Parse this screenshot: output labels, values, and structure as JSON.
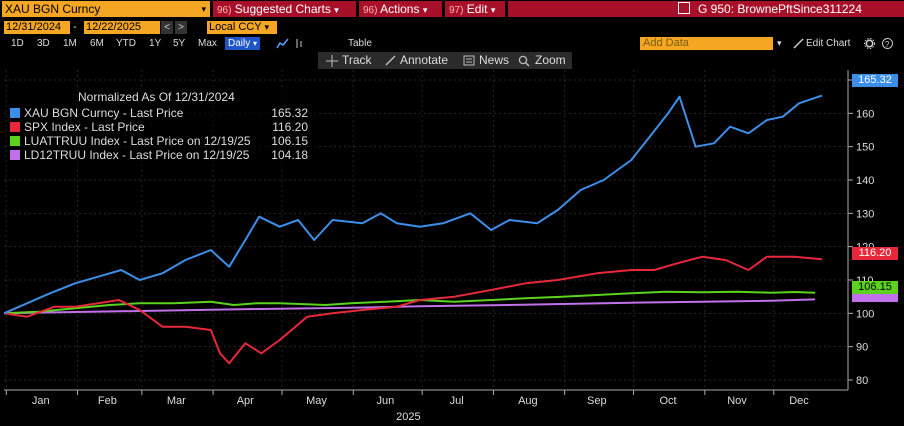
{
  "header": {
    "title": "XAU BGN Curncy",
    "title_caret": "▾",
    "suggested_num": "96)",
    "suggested_label": "Suggested Charts",
    "actions_num": "96)",
    "actions_label": "Actions",
    "edit_num": "97)",
    "edit_label": "Edit",
    "caret": "▾",
    "window_label": "G 950: BrownePftSince311224"
  },
  "controls": {
    "start_date": "12/31/2024",
    "end_date": "12/22/2025",
    "dash": "-",
    "prev": "<",
    "next": ">",
    "currency": "Local CCY",
    "caret": "▾",
    "periods": [
      "1D",
      "3D",
      "1M",
      "6M",
      "YTD",
      "1Y",
      "5Y",
      "Max"
    ],
    "frequency": "Daily",
    "table_label": "Table",
    "add_data_placeholder": "Add Data",
    "edit_chart": "Edit Chart",
    "tools": [
      "Track",
      "Annotate",
      "News",
      "Zoom"
    ]
  },
  "legend": {
    "title": "Normalized As Of 12/31/2024",
    "items": [
      {
        "label": "XAU BGN Curncy - Last Price",
        "value": "165.32",
        "color": "#3c8fe8"
      },
      {
        "label": "SPX Index - Last Price",
        "value": "116.20",
        "color": "#e8283a"
      },
      {
        "label": "LUATTRUU Index - Last Price on 12/19/25",
        "value": "106.15",
        "color": "#5ad21e"
      },
      {
        "label": "LD12TRUU Index - Last Price on 12/19/25",
        "value": "104.18",
        "color": "#c070e8"
      }
    ]
  },
  "chart_data": {
    "type": "line",
    "xlabel": "2025",
    "x_ticks": [
      "Jan",
      "Feb",
      "Mar",
      "Apr",
      "May",
      "Jun",
      "Jul",
      "Aug",
      "Sep",
      "Oct",
      "Nov",
      "Dec"
    ],
    "ylim": [
      77,
      173
    ],
    "y_ticks": [
      80,
      90,
      100,
      110,
      120,
      130,
      140,
      150,
      160,
      170
    ],
    "grid": true,
    "legend_position": "top-left",
    "series": [
      {
        "name": "XAU BGN Curncy - Last Price",
        "color": "#3c8fe8",
        "x": [
          "2024-12-31",
          "2025-01-10",
          "2025-01-20",
          "2025-01-31",
          "2025-02-10",
          "2025-02-20",
          "2025-02-28",
          "2025-03-10",
          "2025-03-20",
          "2025-03-31",
          "2025-04-08",
          "2025-04-15",
          "2025-04-21",
          "2025-04-30",
          "2025-05-08",
          "2025-05-15",
          "2025-05-23",
          "2025-06-05",
          "2025-06-13",
          "2025-06-20",
          "2025-06-30",
          "2025-07-10",
          "2025-07-22",
          "2025-07-31",
          "2025-08-08",
          "2025-08-20",
          "2025-08-29",
          "2025-09-08",
          "2025-09-18",
          "2025-09-30",
          "2025-10-08",
          "2025-10-16",
          "2025-10-21",
          "2025-10-28",
          "2025-11-05",
          "2025-11-12",
          "2025-11-20",
          "2025-11-28",
          "2025-12-05",
          "2025-12-12",
          "2025-12-22"
        ],
        "y": [
          100,
          103,
          106,
          109,
          111,
          113,
          110,
          112,
          116,
          119,
          114,
          122,
          129,
          126,
          128,
          122,
          128,
          127,
          130,
          127,
          126,
          127,
          130,
          125,
          128,
          127,
          131,
          137,
          140,
          146,
          153,
          160,
          165,
          150,
          151,
          156,
          154,
          158,
          159,
          163,
          165.32
        ]
      },
      {
        "name": "SPX Index - Last Price",
        "color": "#e8283a",
        "x": [
          "2024-12-31",
          "2025-01-10",
          "2025-01-22",
          "2025-01-31",
          "2025-02-10",
          "2025-02-19",
          "2025-02-28",
          "2025-03-10",
          "2025-03-20",
          "2025-03-31",
          "2025-04-04",
          "2025-04-08",
          "2025-04-15",
          "2025-04-22",
          "2025-04-30",
          "2025-05-12",
          "2025-05-23",
          "2025-06-05",
          "2025-06-20",
          "2025-06-30",
          "2025-07-15",
          "2025-07-31",
          "2025-08-15",
          "2025-08-29",
          "2025-09-15",
          "2025-09-30",
          "2025-10-10",
          "2025-10-20",
          "2025-10-31",
          "2025-11-10",
          "2025-11-20",
          "2025-11-28",
          "2025-12-10",
          "2025-12-22"
        ],
        "y": [
          100,
          99,
          102,
          102,
          103,
          104,
          101,
          96,
          96,
          95,
          88,
          85,
          91,
          88,
          92,
          99,
          100,
          101,
          102,
          104,
          105,
          107,
          109,
          110,
          112,
          113,
          113,
          115,
          117,
          116,
          113,
          117,
          117,
          116.2
        ]
      },
      {
        "name": "LUATTRUU Index - Last Price on 12/19/25",
        "color": "#5ad21e",
        "x": [
          "2024-12-31",
          "2025-01-15",
          "2025-01-31",
          "2025-02-15",
          "2025-02-28",
          "2025-03-15",
          "2025-03-31",
          "2025-04-10",
          "2025-04-20",
          "2025-04-30",
          "2025-05-20",
          "2025-05-31",
          "2025-06-15",
          "2025-06-30",
          "2025-07-15",
          "2025-07-31",
          "2025-08-15",
          "2025-08-31",
          "2025-09-15",
          "2025-09-30",
          "2025-10-15",
          "2025-10-31",
          "2025-11-15",
          "2025-11-30",
          "2025-12-10",
          "2025-12-19"
        ],
        "y": [
          100,
          100.5,
          101.5,
          102.5,
          103,
          103,
          103.5,
          102.5,
          103,
          103,
          102.5,
          103,
          103.5,
          104,
          103.5,
          104,
          104.5,
          105,
          105.5,
          106,
          106.5,
          106.3,
          106.5,
          106.2,
          106.4,
          106.15
        ]
      },
      {
        "name": "LD12TRUU Index - Last Price on 12/19/25",
        "color": "#c070e8",
        "x": [
          "2024-12-31",
          "2025-01-31",
          "2025-02-28",
          "2025-03-31",
          "2025-04-30",
          "2025-05-31",
          "2025-06-30",
          "2025-07-31",
          "2025-08-31",
          "2025-09-30",
          "2025-10-31",
          "2025-11-30",
          "2025-12-19"
        ],
        "y": [
          100,
          100.4,
          100.7,
          101.1,
          101.4,
          101.7,
          102.1,
          102.4,
          102.8,
          103.2,
          103.5,
          103.8,
          104.18
        ]
      }
    ]
  }
}
